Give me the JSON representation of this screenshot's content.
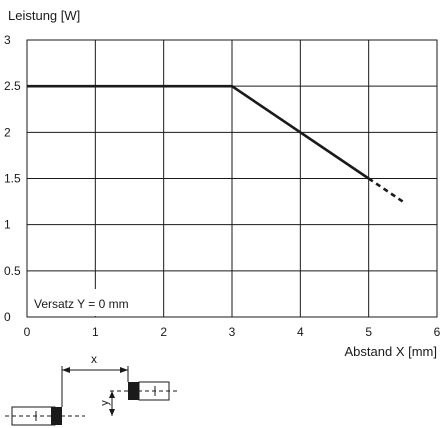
{
  "chart_data": {
    "type": "line",
    "ylabel": "Leistung [W]",
    "xlabel": "Abstand X [mm]",
    "xlim": [
      0,
      6
    ],
    "ylim": [
      0,
      3
    ],
    "x_ticks": [
      "0",
      "1",
      "2",
      "3",
      "4",
      "5",
      "6"
    ],
    "y_ticks": [
      "0",
      "0.5",
      "1",
      "1.5",
      "2",
      "2.5",
      "3"
    ],
    "grid": true,
    "series": [
      {
        "x": [
          0,
          3,
          5
        ],
        "y": [
          2.5,
          2.5,
          1.5
        ],
        "extension": {
          "style": "dashed",
          "x": [
            5,
            5.5
          ],
          "y": [
            1.5,
            1.25
          ]
        }
      }
    ],
    "annotation": "Versatz Y = 0 mm"
  },
  "schematic": {
    "x_label": "x",
    "y_label": "y"
  }
}
